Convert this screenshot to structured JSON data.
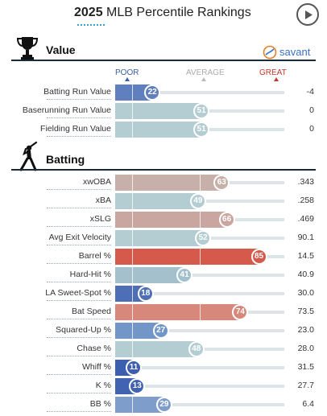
{
  "header": {
    "year": "2025",
    "title": "MLB Percentile Rankings",
    "play_icon": "play-circle-icon"
  },
  "value_section": {
    "title": "Value",
    "icon": "trophy-icon",
    "savant_label": "savant"
  },
  "legend": {
    "poor": "POOR",
    "average": "AVERAGE",
    "great": "GREAT"
  },
  "value_rows": [
    {
      "label": "Batting Run Value",
      "percentile": 22,
      "value": "-4",
      "color": "#5f7fbf"
    },
    {
      "label": "Baserunning Run Value",
      "percentile": 51,
      "value": "0",
      "color": "#b3cdd3"
    },
    {
      "label": "Fielding Run Value",
      "percentile": 51,
      "value": "0",
      "color": "#b3cdd3"
    }
  ],
  "batting_section": {
    "title": "Batting",
    "icon": "batter-icon"
  },
  "batting_rows": [
    {
      "label": "xwOBA",
      "percentile": 63,
      "value": ".343",
      "color": "#c7b0aa"
    },
    {
      "label": "xBA",
      "percentile": 49,
      "value": ".258",
      "color": "#b3cdd3"
    },
    {
      "label": "xSLG",
      "percentile": 66,
      "value": ".469",
      "color": "#c9a7a0"
    },
    {
      "label": "Avg Exit Velocity",
      "percentile": 52,
      "value": "90.1",
      "color": "#b3cdd3"
    },
    {
      "label": "Barrel %",
      "percentile": 85,
      "value": "14.5",
      "color": "#d65a4b"
    },
    {
      "label": "Hard-Hit %",
      "percentile": 41,
      "value": "40.9",
      "color": "#a3c0cc"
    },
    {
      "label": "LA Sweet-Spot %",
      "percentile": 18,
      "value": "30.0",
      "color": "#4e6fb5"
    },
    {
      "label": "Bat Speed",
      "percentile": 74,
      "value": "73.5",
      "color": "#d7887a"
    },
    {
      "label": "Squared-Up %",
      "percentile": 27,
      "value": "23.0",
      "color": "#7396c8"
    },
    {
      "label": "Chase %",
      "percentile": 48,
      "value": "28.0",
      "color": "#b3cdd3"
    },
    {
      "label": "Whiff %",
      "percentile": 11,
      "value": "31.5",
      "color": "#3d5fb0"
    },
    {
      "label": "K %",
      "percentile": 13,
      "value": "27.7",
      "color": "#4263b2"
    },
    {
      "label": "BB %",
      "percentile": 29,
      "value": "6.4",
      "color": "#7f9dca"
    }
  ]
}
